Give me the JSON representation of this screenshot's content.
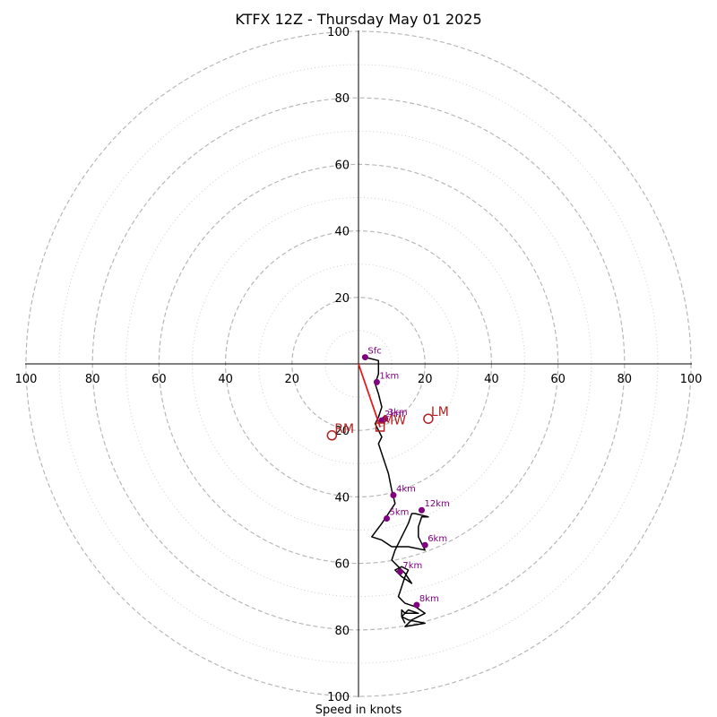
{
  "chart_data": {
    "type": "scatter",
    "title": "KTFX 12Z - Thursday May 01 2025",
    "xlabel": "Speed in knots",
    "ylabel": "",
    "xlim": [
      -100,
      100
    ],
    "ylim": [
      -100,
      100
    ],
    "rings_major": [
      20,
      40,
      60,
      80,
      100
    ],
    "rings_minor": [
      10,
      30,
      50,
      70,
      90
    ],
    "x_tick_labels": [
      "100",
      "80",
      "60",
      "40",
      "20",
      "20",
      "40",
      "60",
      "80",
      "100"
    ],
    "x_tick_values": [
      -100,
      -80,
      -60,
      -40,
      -20,
      20,
      40,
      60,
      80,
      100
    ],
    "y_tick_labels": [
      "100",
      "80",
      "60",
      "40",
      "20",
      "20",
      "40",
      "60",
      "80",
      "100"
    ],
    "y_tick_values": [
      100,
      80,
      60,
      40,
      20,
      -20,
      -40,
      -60,
      -80,
      -100
    ],
    "hodograph_trace": [
      [
        2,
        2
      ],
      [
        6,
        1
      ],
      [
        6,
        -3
      ],
      [
        5,
        -6
      ],
      [
        6,
        -9
      ],
      [
        7,
        -13
      ],
      [
        6,
        -16
      ],
      [
        5,
        -18
      ],
      [
        6,
        -20
      ],
      [
        7,
        -22
      ],
      [
        6,
        -24
      ],
      [
        7,
        -27
      ],
      [
        8,
        -30
      ],
      [
        9,
        -33
      ],
      [
        10,
        -38
      ],
      [
        11,
        -42
      ],
      [
        9,
        -45
      ],
      [
        7,
        -48
      ],
      [
        4,
        -52
      ],
      [
        7,
        -53
      ],
      [
        10,
        -55
      ],
      [
        15,
        -55
      ],
      [
        20,
        -56
      ],
      [
        19,
        -54
      ],
      [
        18,
        -52
      ],
      [
        18,
        -49
      ],
      [
        19,
        -46
      ],
      [
        21,
        -46
      ],
      [
        17,
        -45
      ],
      [
        16,
        -45
      ],
      [
        15,
        -48
      ],
      [
        13,
        -52
      ],
      [
        11,
        -56
      ],
      [
        10,
        -59
      ],
      [
        12,
        -61
      ],
      [
        14,
        -63
      ],
      [
        16,
        -66
      ],
      [
        13,
        -64
      ],
      [
        11,
        -62
      ],
      [
        13,
        -61
      ],
      [
        15,
        -62
      ],
      [
        14,
        -64
      ],
      [
        13,
        -67
      ],
      [
        12,
        -70
      ],
      [
        14,
        -72
      ],
      [
        17,
        -73
      ],
      [
        20,
        -75
      ],
      [
        16,
        -77
      ],
      [
        14,
        -79
      ],
      [
        20,
        -78
      ],
      [
        15,
        -77
      ],
      [
        13,
        -76
      ],
      [
        15,
        -74
      ],
      [
        18,
        -75
      ],
      [
        14,
        -75
      ],
      [
        13,
        -74
      ],
      [
        13,
        -76
      ],
      [
        14,
        -78
      ]
    ],
    "height_markers": [
      {
        "label": "Sfc",
        "u": 2,
        "v": 2
      },
      {
        "label": "1km",
        "u": 5.5,
        "v": -5.5
      },
      {
        "label": "2km",
        "u": 7,
        "v": -17
      },
      {
        "label": "3km",
        "u": 8,
        "v": -16.5
      },
      {
        "label": "4km",
        "u": 10.5,
        "v": -39.5
      },
      {
        "label": "5km",
        "u": 8.5,
        "v": -46.5
      },
      {
        "label": "6km",
        "u": 20,
        "v": -54.5
      },
      {
        "label": "7km",
        "u": 12.5,
        "v": -62.5
      },
      {
        "label": "8km",
        "u": 17.5,
        "v": -72.5
      },
      {
        "label": "12km",
        "u": 19,
        "v": -44
      }
    ],
    "storm_motion": [
      {
        "label": "LM",
        "u": 21,
        "v": -16.5
      },
      {
        "label": "RM",
        "u": -8,
        "v": -21.5
      },
      {
        "label": "MW",
        "u": 6.5,
        "v": -19
      }
    ],
    "shear_vector": {
      "from": [
        0,
        0
      ],
      "to": [
        6.5,
        -19
      ]
    },
    "colors": {
      "grid_major": "#b8b8b8",
      "grid_minor": "#cfcfcf",
      "trace": "#000000",
      "markers": "#800080",
      "storm": "#b22222",
      "shear": "#e31a1c"
    }
  }
}
